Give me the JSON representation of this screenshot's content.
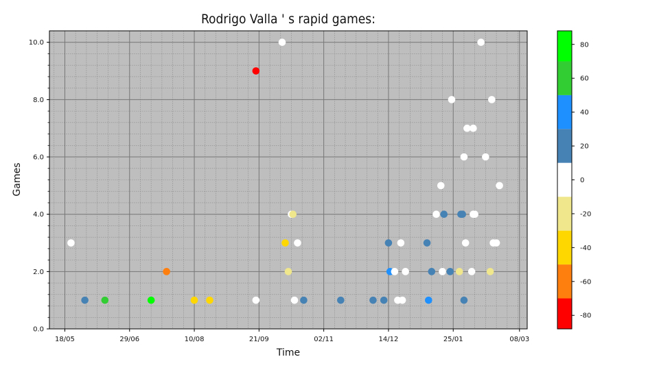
{
  "chart_data": {
    "type": "scatter",
    "title": "Rodrigo Valla ' s  rapid games:",
    "xlabel": "Time",
    "ylabel": "Games",
    "ylim": [
      0,
      10.4
    ],
    "xlim": [
      "2023-05-08",
      "2024-03-13"
    ],
    "x_tick_labels": [
      "18/05",
      "29/06",
      "10/08",
      "21/09",
      "02/11",
      "14/12",
      "25/01",
      "08/03"
    ],
    "x_tick_dates": [
      "2023-05-18",
      "2023-06-29",
      "2023-08-10",
      "2023-09-21",
      "2023-11-02",
      "2023-12-14",
      "2024-01-25",
      "2024-03-08"
    ],
    "y_ticks": [
      0,
      2,
      4,
      6,
      8,
      10
    ],
    "y_tick_labels": [
      "0.0",
      "2.0",
      "4.0",
      "6.0",
      "8.0",
      "10.0"
    ],
    "grid": true,
    "colorbar": {
      "ticks": [
        80,
        60,
        40,
        20,
        0,
        -20,
        -40,
        -60,
        -80
      ],
      "range": [
        -88,
        88
      ],
      "bands": [
        {
          "from": 70,
          "to": 88,
          "color": "#00ff00"
        },
        {
          "from": 50,
          "to": 70,
          "color": "#32cd32"
        },
        {
          "from": 30,
          "to": 50,
          "color": "#1e90ff"
        },
        {
          "from": 10,
          "to": 30,
          "color": "#4682b4"
        },
        {
          "from": -10,
          "to": 10,
          "color": "#ffffff"
        },
        {
          "from": -30,
          "to": -10,
          "color": "#f0e68c"
        },
        {
          "from": -50,
          "to": -30,
          "color": "#ffd700"
        },
        {
          "from": -70,
          "to": -50,
          "color": "#ff7f0e"
        },
        {
          "from": -88,
          "to": -70,
          "color": "#ff0000"
        }
      ]
    },
    "points": [
      {
        "x": "2023-05-22",
        "y": 3,
        "color": "#ffffff"
      },
      {
        "x": "2023-05-31",
        "y": 1,
        "color": "#4682b4"
      },
      {
        "x": "2023-06-13",
        "y": 1,
        "color": "#32cd32"
      },
      {
        "x": "2023-07-13",
        "y": 1,
        "color": "#00ff00"
      },
      {
        "x": "2023-07-23",
        "y": 2,
        "color": "#ff7f0e"
      },
      {
        "x": "2023-08-10",
        "y": 1,
        "color": "#ffd700"
      },
      {
        "x": "2023-08-20",
        "y": 1,
        "color": "#ffd700"
      },
      {
        "x": "2023-09-19",
        "y": 9,
        "color": "#ff0000"
      },
      {
        "x": "2023-09-19",
        "y": 1,
        "color": "#ffffff"
      },
      {
        "x": "2023-10-06",
        "y": 10,
        "color": "#ffffff"
      },
      {
        "x": "2023-10-08",
        "y": 3,
        "color": "#ffd700"
      },
      {
        "x": "2023-10-10",
        "y": 2,
        "color": "#f0e68c"
      },
      {
        "x": "2023-10-12",
        "y": 4,
        "color": "#ffffff"
      },
      {
        "x": "2023-10-13",
        "y": 4,
        "color": "#f0e68c"
      },
      {
        "x": "2023-10-14",
        "y": 1,
        "color": "#ffffff"
      },
      {
        "x": "2023-10-16",
        "y": 3,
        "color": "#ffffff"
      },
      {
        "x": "2023-10-20",
        "y": 1,
        "color": "#4682b4"
      },
      {
        "x": "2023-11-13",
        "y": 1,
        "color": "#4682b4"
      },
      {
        "x": "2023-12-04",
        "y": 1,
        "color": "#4682b4"
      },
      {
        "x": "2023-12-11",
        "y": 1,
        "color": "#4682b4"
      },
      {
        "x": "2023-12-14",
        "y": 3,
        "color": "#4682b4"
      },
      {
        "x": "2023-12-15",
        "y": 2,
        "color": "#1e90ff"
      },
      {
        "x": "2023-12-18",
        "y": 2,
        "color": "#ffffff"
      },
      {
        "x": "2023-12-20",
        "y": 1,
        "color": "#ffffff"
      },
      {
        "x": "2023-12-22",
        "y": 3,
        "color": "#ffffff"
      },
      {
        "x": "2023-12-23",
        "y": 1,
        "color": "#ffffff"
      },
      {
        "x": "2023-12-25",
        "y": 2,
        "color": "#ffffff"
      },
      {
        "x": "2024-01-08",
        "y": 3,
        "color": "#4682b4"
      },
      {
        "x": "2024-01-09",
        "y": 1,
        "color": "#1e90ff"
      },
      {
        "x": "2024-01-11",
        "y": 2,
        "color": "#4682b4"
      },
      {
        "x": "2024-01-14",
        "y": 4,
        "color": "#ffffff"
      },
      {
        "x": "2024-01-17",
        "y": 5,
        "color": "#ffffff"
      },
      {
        "x": "2024-01-18",
        "y": 2,
        "color": "#ffffff"
      },
      {
        "x": "2024-01-19",
        "y": 4,
        "color": "#4682b4"
      },
      {
        "x": "2024-01-23",
        "y": 2,
        "color": "#4682b4"
      },
      {
        "x": "2024-01-24",
        "y": 8,
        "color": "#ffffff"
      },
      {
        "x": "2024-01-29",
        "y": 2,
        "color": "#f0e68c"
      },
      {
        "x": "2024-01-30",
        "y": 4,
        "color": "#4682b4"
      },
      {
        "x": "2024-01-31",
        "y": 4,
        "color": "#4682b4"
      },
      {
        "x": "2024-02-01",
        "y": 1,
        "color": "#4682b4"
      },
      {
        "x": "2024-02-01",
        "y": 6,
        "color": "#ffffff"
      },
      {
        "x": "2024-02-02",
        "y": 3,
        "color": "#ffffff"
      },
      {
        "x": "2024-02-03",
        "y": 7,
        "color": "#ffffff"
      },
      {
        "x": "2024-02-06",
        "y": 2,
        "color": "#ffffff"
      },
      {
        "x": "2024-02-07",
        "y": 4,
        "color": "#ffffff"
      },
      {
        "x": "2024-02-07",
        "y": 7,
        "color": "#ffffff"
      },
      {
        "x": "2024-02-08",
        "y": 4,
        "color": "#ffffff"
      },
      {
        "x": "2024-02-12",
        "y": 10,
        "color": "#ffffff"
      },
      {
        "x": "2024-02-15",
        "y": 6,
        "color": "#ffffff"
      },
      {
        "x": "2024-02-18",
        "y": 2,
        "color": "#f0e68c"
      },
      {
        "x": "2024-02-19",
        "y": 8,
        "color": "#ffffff"
      },
      {
        "x": "2024-02-20",
        "y": 3,
        "color": "#ffffff"
      },
      {
        "x": "2024-02-22",
        "y": 3,
        "color": "#ffffff"
      },
      {
        "x": "2024-02-24",
        "y": 5,
        "color": "#ffffff"
      }
    ]
  }
}
